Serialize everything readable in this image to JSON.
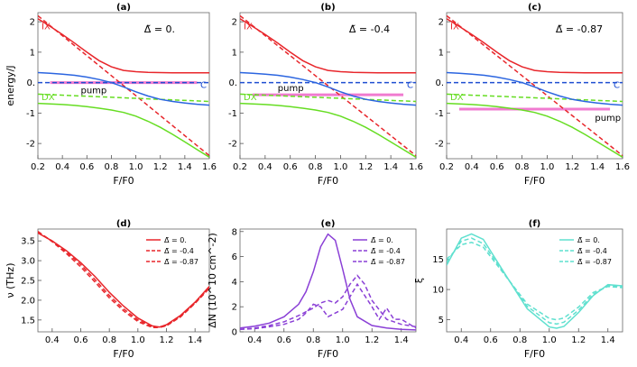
{
  "chart_data": [
    {
      "id": "a",
      "type": "line",
      "title": "(a)",
      "annotation": "Δ̃ = 0.",
      "xlabel": "F/F0",
      "ylabel": "energy/J",
      "xlim": [
        0.2,
        1.6
      ],
      "ylim": [
        -2.5,
        2.3
      ],
      "xticks": [
        "0.2",
        "0.4",
        "0.6",
        "0.8",
        "1.0",
        "1.2",
        "1.4",
        "1.6"
      ],
      "yticks": [
        "2",
        "1",
        "0.",
        "-1",
        "-2"
      ],
      "labels": {
        "ix": "IX",
        "dx": "DX",
        "c": "C",
        "pump": "pump"
      },
      "pump_level": 0.0,
      "pump_label_pos": "below",
      "series": [
        {
          "name": "IX bare",
          "style": "dashed",
          "color": "#e8262b",
          "x": [
            0.2,
            1.6
          ],
          "y": [
            2.2,
            -2.4
          ]
        },
        {
          "name": "C bare",
          "style": "dashed",
          "color": "#1f4fd1",
          "x": [
            0.2,
            1.6
          ],
          "y": [
            0.0,
            0.0
          ]
        },
        {
          "name": "DX bare",
          "style": "dashed",
          "color": "#66dd22",
          "x": [
            0.2,
            1.6
          ],
          "y": [
            -0.38,
            -0.62
          ]
        },
        {
          "name": "upper",
          "style": "solid",
          "color": "#e8262b",
          "x": [
            0.2,
            0.3,
            0.4,
            0.5,
            0.6,
            0.7,
            0.8,
            0.9,
            1.0,
            1.1,
            1.2,
            1.3,
            1.4,
            1.5,
            1.6
          ],
          "y": [
            2.1,
            1.85,
            1.58,
            1.3,
            1.0,
            0.72,
            0.52,
            0.4,
            0.36,
            0.34,
            0.33,
            0.32,
            0.32,
            0.32,
            0.32
          ]
        },
        {
          "name": "middle",
          "style": "solid",
          "color": "#2b65e0",
          "x": [
            0.2,
            0.3,
            0.4,
            0.5,
            0.6,
            0.7,
            0.8,
            0.9,
            1.0,
            1.1,
            1.2,
            1.3,
            1.4,
            1.5,
            1.6
          ],
          "y": [
            0.33,
            0.31,
            0.28,
            0.24,
            0.18,
            0.1,
            0.0,
            -0.14,
            -0.3,
            -0.44,
            -0.55,
            -0.62,
            -0.67,
            -0.71,
            -0.74
          ]
        },
        {
          "name": "lower",
          "style": "solid",
          "color": "#66dd22",
          "x": [
            0.2,
            0.3,
            0.4,
            0.5,
            0.6,
            0.7,
            0.8,
            0.9,
            1.0,
            1.1,
            1.2,
            1.3,
            1.4,
            1.5,
            1.6
          ],
          "y": [
            -0.68,
            -0.7,
            -0.72,
            -0.75,
            -0.79,
            -0.84,
            -0.9,
            -0.98,
            -1.1,
            -1.27,
            -1.47,
            -1.7,
            -1.95,
            -2.2,
            -2.45
          ]
        }
      ]
    },
    {
      "id": "b",
      "type": "line",
      "title": "(b)",
      "annotation": "Δ̃ = -0.4",
      "xlabel": "F/F0",
      "ylabel": "",
      "xlim": [
        0.2,
        1.6
      ],
      "ylim": [
        -2.5,
        2.3
      ],
      "xticks": [
        "0.2",
        "0.4",
        "0.6",
        "0.8",
        "1.0",
        "1.2",
        "1.4",
        "1.6"
      ],
      "yticks": [
        "2",
        "1",
        "0.",
        "-1",
        "-2"
      ],
      "labels": {
        "ix": "IX",
        "dx": "DX",
        "c": "C",
        "pump": "pump"
      },
      "pump_level": -0.4,
      "pump_label_pos": "above",
      "series": [
        {
          "name": "IX bare",
          "style": "dashed",
          "color": "#e8262b",
          "x": [
            0.2,
            1.6
          ],
          "y": [
            2.2,
            -2.4
          ]
        },
        {
          "name": "C bare",
          "style": "dashed",
          "color": "#1f4fd1",
          "x": [
            0.2,
            1.6
          ],
          "y": [
            0.0,
            0.0
          ]
        },
        {
          "name": "DX bare",
          "style": "dashed",
          "color": "#66dd22",
          "x": [
            0.2,
            1.6
          ],
          "y": [
            -0.38,
            -0.62
          ]
        },
        {
          "name": "upper",
          "style": "solid",
          "color": "#e8262b",
          "x": [
            0.2,
            0.3,
            0.4,
            0.5,
            0.6,
            0.7,
            0.8,
            0.9,
            1.0,
            1.1,
            1.2,
            1.3,
            1.4,
            1.5,
            1.6
          ],
          "y": [
            2.1,
            1.85,
            1.58,
            1.3,
            1.0,
            0.72,
            0.52,
            0.4,
            0.36,
            0.34,
            0.33,
            0.32,
            0.32,
            0.32,
            0.32
          ]
        },
        {
          "name": "middle",
          "style": "solid",
          "color": "#2b65e0",
          "x": [
            0.2,
            0.3,
            0.4,
            0.5,
            0.6,
            0.7,
            0.8,
            0.9,
            1.0,
            1.1,
            1.2,
            1.3,
            1.4,
            1.5,
            1.6
          ],
          "y": [
            0.33,
            0.31,
            0.28,
            0.24,
            0.18,
            0.1,
            0.0,
            -0.14,
            -0.3,
            -0.44,
            -0.55,
            -0.62,
            -0.67,
            -0.71,
            -0.74
          ]
        },
        {
          "name": "lower",
          "style": "solid",
          "color": "#66dd22",
          "x": [
            0.2,
            0.3,
            0.4,
            0.5,
            0.6,
            0.7,
            0.8,
            0.9,
            1.0,
            1.1,
            1.2,
            1.3,
            1.4,
            1.5,
            1.6
          ],
          "y": [
            -0.68,
            -0.7,
            -0.72,
            -0.75,
            -0.79,
            -0.84,
            -0.9,
            -0.98,
            -1.1,
            -1.27,
            -1.47,
            -1.7,
            -1.95,
            -2.2,
            -2.45
          ]
        }
      ]
    },
    {
      "id": "c",
      "type": "line",
      "title": "(c)",
      "annotation": "Δ̃ = -0.87",
      "xlabel": "F/F0",
      "ylabel": "",
      "xlim": [
        0.2,
        1.6
      ],
      "ylim": [
        -2.5,
        2.3
      ],
      "xticks": [
        "0.2",
        "0.4",
        "0.6",
        "0.8",
        "1.0",
        "1.2",
        "1.4",
        "1.6"
      ],
      "yticks": [
        "2",
        "1",
        "0.",
        "-1",
        "-2"
      ],
      "labels": {
        "ix": "IX",
        "dx": "DX",
        "c": "C",
        "pump": "pump"
      },
      "pump_level": -0.87,
      "pump_label_pos": "below-right",
      "series": [
        {
          "name": "IX bare",
          "style": "dashed",
          "color": "#e8262b",
          "x": [
            0.2,
            1.6
          ],
          "y": [
            2.2,
            -2.4
          ]
        },
        {
          "name": "C bare",
          "style": "dashed",
          "color": "#1f4fd1",
          "x": [
            0.2,
            1.6
          ],
          "y": [
            0.0,
            0.0
          ]
        },
        {
          "name": "DX bare",
          "style": "dashed",
          "color": "#66dd22",
          "x": [
            0.2,
            1.6
          ],
          "y": [
            -0.38,
            -0.62
          ]
        },
        {
          "name": "upper",
          "style": "solid",
          "color": "#e8262b",
          "x": [
            0.2,
            0.3,
            0.4,
            0.5,
            0.6,
            0.7,
            0.8,
            0.9,
            1.0,
            1.1,
            1.2,
            1.3,
            1.4,
            1.5,
            1.6
          ],
          "y": [
            2.1,
            1.85,
            1.58,
            1.3,
            1.0,
            0.72,
            0.52,
            0.4,
            0.36,
            0.34,
            0.33,
            0.32,
            0.32,
            0.32,
            0.32
          ]
        },
        {
          "name": "middle",
          "style": "solid",
          "color": "#2b65e0",
          "x": [
            0.2,
            0.3,
            0.4,
            0.5,
            0.6,
            0.7,
            0.8,
            0.9,
            1.0,
            1.1,
            1.2,
            1.3,
            1.4,
            1.5,
            1.6
          ],
          "y": [
            0.33,
            0.31,
            0.28,
            0.24,
            0.18,
            0.1,
            0.0,
            -0.14,
            -0.3,
            -0.44,
            -0.55,
            -0.62,
            -0.67,
            -0.71,
            -0.74
          ]
        },
        {
          "name": "lower",
          "style": "solid",
          "color": "#66dd22",
          "x": [
            0.2,
            0.3,
            0.4,
            0.5,
            0.6,
            0.7,
            0.8,
            0.9,
            1.0,
            1.1,
            1.2,
            1.3,
            1.4,
            1.5,
            1.6
          ],
          "y": [
            -0.68,
            -0.7,
            -0.72,
            -0.75,
            -0.79,
            -0.84,
            -0.9,
            -0.98,
            -1.1,
            -1.27,
            -1.47,
            -1.7,
            -1.95,
            -2.2,
            -2.45
          ]
        }
      ]
    },
    {
      "id": "d",
      "type": "line",
      "title": "(d)",
      "xlabel": "F/F0",
      "ylabel": "ν (THz)",
      "xlim": [
        0.3,
        1.5
      ],
      "ylim": [
        1.2,
        3.8
      ],
      "xticks": [
        "0.4",
        "0.6",
        "0.8",
        "1.0",
        "1.2",
        "1.4"
      ],
      "yticks": [
        "3.5",
        "3.0",
        "2.5",
        "2.0",
        "1.5"
      ],
      "legend_position": "top-right",
      "series": [
        {
          "name": "Δ̃ = 0.",
          "style": "solid",
          "color": "#e8262b",
          "x": [
            0.3,
            0.4,
            0.5,
            0.6,
            0.7,
            0.8,
            0.9,
            1.0,
            1.1,
            1.15,
            1.2,
            1.3,
            1.4,
            1.5
          ],
          "y": [
            3.7,
            3.5,
            3.25,
            2.95,
            2.6,
            2.2,
            1.85,
            1.55,
            1.35,
            1.32,
            1.38,
            1.62,
            1.95,
            2.35
          ]
        },
        {
          "name": "Δ̃ = -0.4",
          "style": "dashed",
          "color": "#e8262b",
          "x": [
            0.3,
            0.4,
            0.5,
            0.6,
            0.7,
            0.8,
            0.9,
            1.0,
            1.1,
            1.15,
            1.2,
            1.3,
            1.4,
            1.5
          ],
          "y": [
            3.72,
            3.5,
            3.22,
            2.9,
            2.52,
            2.12,
            1.78,
            1.5,
            1.33,
            1.32,
            1.36,
            1.6,
            1.93,
            2.32
          ]
        },
        {
          "name": "Δ̃ = -0.87",
          "style": "dashed",
          "color": "#e8262b",
          "x": [
            0.3,
            0.4,
            0.5,
            0.6,
            0.7,
            0.8,
            0.9,
            1.0,
            1.1,
            1.15,
            1.2,
            1.3,
            1.4,
            1.5
          ],
          "y": [
            3.74,
            3.48,
            3.18,
            2.84,
            2.46,
            2.06,
            1.73,
            1.46,
            1.31,
            1.31,
            1.35,
            1.58,
            1.92,
            2.3
          ]
        }
      ]
    },
    {
      "id": "e",
      "type": "line",
      "title": "(e)",
      "xlabel": "F/F0",
      "ylabel": "ΔN (10^10 cm^-2)",
      "xlim": [
        0.3,
        1.5
      ],
      "ylim": [
        0,
        8.2
      ],
      "xticks": [
        "0.4",
        "0.6",
        "0.8",
        "1.0",
        "1.2",
        "1.4"
      ],
      "yticks": [
        "8",
        "6",
        "4",
        "2",
        "0"
      ],
      "legend_position": "top-right",
      "series": [
        {
          "name": "Δ̃ = 0.",
          "style": "solid",
          "color": "#8a3fd6",
          "x": [
            0.3,
            0.4,
            0.5,
            0.6,
            0.7,
            0.75,
            0.8,
            0.85,
            0.9,
            0.95,
            1.0,
            1.05,
            1.1,
            1.2,
            1.3,
            1.4,
            1.5
          ],
          "y": [
            0.3,
            0.45,
            0.7,
            1.2,
            2.2,
            3.2,
            4.8,
            6.8,
            7.8,
            7.3,
            5.0,
            2.6,
            1.2,
            0.5,
            0.3,
            0.2,
            0.15
          ]
        },
        {
          "name": "Δ̃ = -0.4",
          "style": "dashed",
          "color": "#8a3fd6",
          "x": [
            0.3,
            0.4,
            0.5,
            0.6,
            0.7,
            0.8,
            0.85,
            0.9,
            0.95,
            1.0,
            1.05,
            1.1,
            1.15,
            1.2,
            1.3,
            1.4,
            1.5
          ],
          "y": [
            0.2,
            0.3,
            0.5,
            0.8,
            1.3,
            1.9,
            2.3,
            2.5,
            2.3,
            2.8,
            3.8,
            4.5,
            3.8,
            2.5,
            1.0,
            0.6,
            0.4
          ]
        },
        {
          "name": "Δ̃ = -0.87",
          "style": "dashed",
          "color": "#8a3fd6",
          "x": [
            0.3,
            0.4,
            0.5,
            0.6,
            0.7,
            0.75,
            0.8,
            0.85,
            0.9,
            1.0,
            1.1,
            1.2,
            1.25,
            1.3,
            1.35,
            1.4,
            1.5
          ],
          "y": [
            0.2,
            0.25,
            0.4,
            0.6,
            1.0,
            1.5,
            2.2,
            2.0,
            1.2,
            1.8,
            3.8,
            2.0,
            1.0,
            1.9,
            1.0,
            1.0,
            0.3
          ]
        }
      ]
    },
    {
      "id": "f",
      "type": "line",
      "title": "(f)",
      "xlabel": "F/F0",
      "ylabel": "ξ",
      "xlim": [
        0.3,
        1.5
      ],
      "ylim": [
        3,
        20
      ],
      "xticks": [
        "0.4",
        "0.6",
        "0.8",
        "1.0",
        "1.2",
        "1.4"
      ],
      "yticks": [
        "15",
        "10",
        "5"
      ],
      "legend_position": "top-right",
      "series": [
        {
          "name": "Δ̃ = 0.",
          "style": "solid",
          "color": "#5fe0cf",
          "x": [
            0.3,
            0.4,
            0.47,
            0.55,
            0.7,
            0.85,
            1.0,
            1.05,
            1.1,
            1.2,
            1.3,
            1.4,
            1.5
          ],
          "y": [
            14.0,
            18.5,
            19.2,
            18.3,
            12.5,
            6.8,
            3.8,
            3.6,
            3.9,
            6.2,
            9.0,
            10.8,
            10.6
          ]
        },
        {
          "name": "Δ̃ = -0.4",
          "style": "dashed",
          "color": "#5fe0cf",
          "x": [
            0.3,
            0.4,
            0.47,
            0.55,
            0.7,
            0.85,
            1.0,
            1.05,
            1.1,
            1.2,
            1.3,
            1.4,
            1.5
          ],
          "y": [
            14.5,
            18.0,
            18.5,
            17.6,
            12.4,
            7.2,
            4.5,
            4.3,
            4.6,
            6.6,
            9.2,
            10.6,
            10.5
          ]
        },
        {
          "name": "Δ̃ = -0.87",
          "style": "dashed",
          "color": "#5fe0cf",
          "x": [
            0.3,
            0.4,
            0.47,
            0.55,
            0.7,
            0.85,
            1.0,
            1.05,
            1.1,
            1.2,
            1.3,
            1.4,
            1.5
          ],
          "y": [
            15.0,
            17.4,
            17.8,
            17.0,
            12.3,
            7.6,
            5.2,
            5.0,
            5.3,
            7.1,
            9.5,
            10.5,
            10.3
          ]
        }
      ]
    }
  ],
  "colors": {
    "pump": "#f07bd0",
    "ix_label": "#e8262b",
    "dx_label": "#66dd22",
    "c_label": "#1f4fd1"
  }
}
